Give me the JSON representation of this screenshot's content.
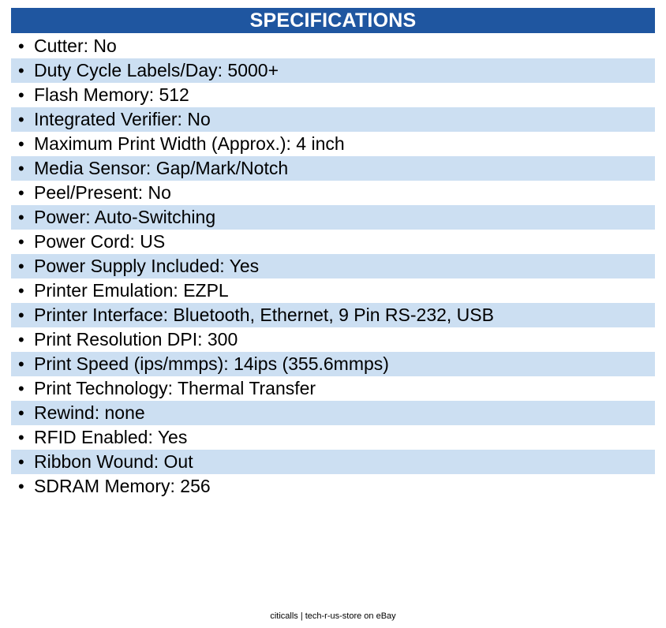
{
  "header": {
    "title": "SPECIFICATIONS"
  },
  "colors": {
    "header_background": "#1f56a0",
    "header_text": "#ffffff",
    "row_shade": "#ccdff2"
  },
  "bullet_glyph": "•",
  "specs": [
    {
      "text": "Cutter: No"
    },
    {
      "text": "Duty Cycle Labels/Day: 5000+"
    },
    {
      "text": "Flash Memory: 512"
    },
    {
      "text": "Integrated Verifier: No"
    },
    {
      "text": "Maximum Print Width (Approx.): 4 inch"
    },
    {
      "text": "Media Sensor: Gap/Mark/Notch"
    },
    {
      "text": "Peel/Present: No"
    },
    {
      "text": "Power: Auto-Switching"
    },
    {
      "text": "Power Cord: US"
    },
    {
      "text": "Power Supply Included: Yes"
    },
    {
      "text": "Printer Emulation: EZPL"
    },
    {
      "text": "Printer Interface: Bluetooth, Ethernet, 9 Pin RS-232, USB"
    },
    {
      "text": "Print Resolution DPI: 300"
    },
    {
      "text": "Print Speed (ips/mmps): 14ips (355.6mmps)"
    },
    {
      "text": "Print Technology: Thermal Transfer"
    },
    {
      "text": "Rewind: none"
    },
    {
      "text": "RFID Enabled: Yes"
    },
    {
      "text": "Ribbon Wound: Out"
    },
    {
      "text": "SDRAM Memory: 256"
    }
  ],
  "footer": {
    "text": "citicalls | tech-r-us-store on eBay"
  }
}
